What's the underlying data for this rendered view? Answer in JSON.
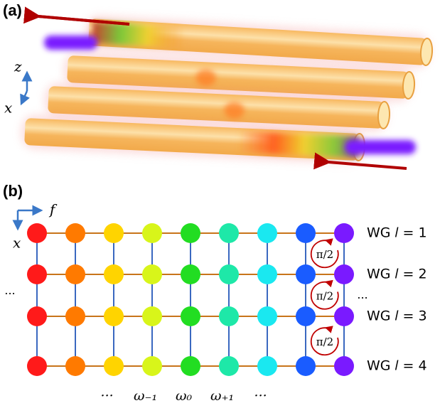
{
  "panel_a": {
    "label": "(a)",
    "axes": [
      "z",
      "x"
    ]
  },
  "panel_b": {
    "label": "(b)",
    "axes": [
      "f",
      "x"
    ],
    "node_colors": [
      "#ff1a1a",
      "#ff7a00",
      "#ffd400",
      "#d8f51a",
      "#22dd22",
      "#1ee8a8",
      "#1ae8f0",
      "#1a5cff",
      "#7a1aff"
    ],
    "row_labels": [
      "WG 𝑙 = 1",
      "WG 𝑙 = 2",
      "WG 𝑙 = 3",
      "WG 𝑙 = 4"
    ],
    "phase_labels": [
      "π/2",
      "π/2",
      "π/2"
    ],
    "side_dots": [
      "···",
      "···"
    ],
    "frequency_labels": [
      "···",
      "ω₋₁",
      "ω₀",
      "ω₊₁",
      "···"
    ]
  }
}
